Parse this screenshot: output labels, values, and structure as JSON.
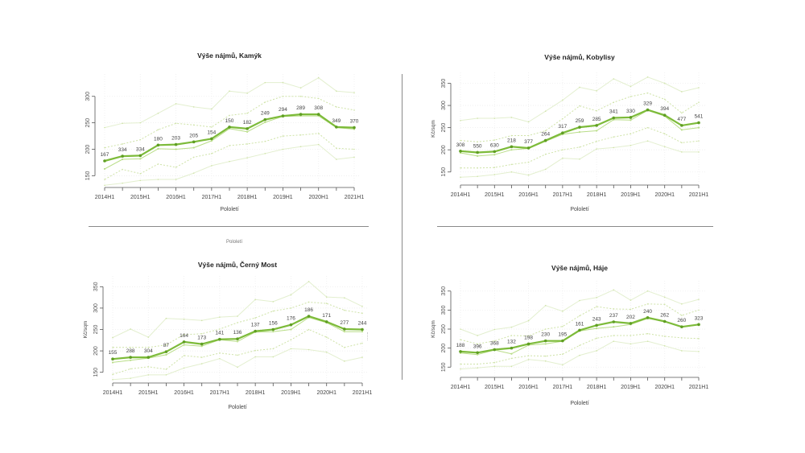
{
  "colors": {
    "median": "#7dbb3a",
    "median_dark": "#5f9e23",
    "mean": "#b9dd88",
    "inner_band": "#cfe3a8",
    "outer_band": "#e3efcf",
    "axis": "#555555",
    "text": "#333333",
    "grid": "#eeeeee"
  },
  "stray_label": "Pololetí",
  "chart_data": [
    {
      "id": "kamyk",
      "type": "line",
      "title": "Výše nájmů, Kamýk",
      "xlabel": "Pololetí",
      "ylabel": "",
      "ylim": [
        140,
        330
      ],
      "yticks": [
        150,
        200,
        250,
        300
      ],
      "x": [
        "2014H1",
        "2014H2",
        "2015H1",
        "2015H2",
        "2016H1",
        "2016H2",
        "2017H1",
        "2017H2",
        "2018H1",
        "2018H2",
        "2019H1",
        "2019H2",
        "2020H1",
        "2020H2",
        "2021H1"
      ],
      "xtick_labels": [
        "2014H1",
        "",
        "2015H1",
        "",
        "2016H1",
        "",
        "2017H1",
        "",
        "2018H1",
        "",
        "2019H1",
        "",
        "2020H1",
        "",
        "2021H1"
      ],
      "grid": true,
      "series": [
        {
          "name": "outer_upper",
          "style": "outer",
          "values": [
            241,
            249,
            250,
            268,
            286,
            280,
            276,
            310,
            306,
            326,
            326,
            316,
            335,
            310,
            307
          ]
        },
        {
          "name": "inner_upper",
          "style": "inner",
          "values": [
            203,
            210,
            218,
            237,
            249,
            246,
            242,
            264,
            268,
            289,
            300,
            300,
            296,
            280,
            274
          ]
        },
        {
          "name": "mean",
          "style": "mean",
          "values": [
            163,
            181,
            182,
            201,
            200,
            203,
            216,
            239,
            233,
            251,
            262,
            263,
            263,
            241,
            238
          ]
        },
        {
          "name": "median",
          "style": "median",
          "values": [
            178,
            187,
            188,
            208,
            209,
            214,
            220,
            242,
            239,
            256,
            263,
            266,
            266,
            242,
            241
          ],
          "labels": [
            "167",
            "334",
            "334",
            "180",
            "203",
            "205",
            "154",
            "150",
            "182",
            "249",
            "294",
            "289",
            "308",
            "349",
            "370"
          ]
        },
        {
          "name": "inner_lower",
          "style": "inner",
          "values": [
            143,
            162,
            154,
            172,
            166,
            185,
            192,
            207,
            210,
            215,
            225,
            227,
            230,
            202,
            200
          ]
        },
        {
          "name": "outer_lower",
          "style": "outer",
          "values": [
            132,
            136,
            141,
            143,
            143,
            155,
            169,
            177,
            184,
            192,
            200,
            205,
            209,
            181,
            185
          ]
        }
      ]
    },
    {
      "id": "kobylisy",
      "type": "line",
      "title": "Výše nájmů, Kobylisy",
      "xlabel": "Pololetí",
      "ylabel": "Kč/sqm",
      "ylim": [
        135,
        360
      ],
      "yticks": [
        150,
        200,
        250,
        300,
        350
      ],
      "x": [
        "2014H1",
        "2014H2",
        "2015H1",
        "2015H2",
        "2016H1",
        "2016H2",
        "2017H1",
        "2017H2",
        "2018H1",
        "2018H2",
        "2019H1",
        "2019H2",
        "2020H1",
        "2020H2",
        "2021H1"
      ],
      "xtick_labels": [
        "2014H1",
        "",
        "2015H1",
        "",
        "2016H1",
        "",
        "2017H1",
        "",
        "2018H1",
        "",
        "2019H1",
        "",
        "2020H1",
        "",
        "2021H1"
      ],
      "grid": true,
      "series": [
        {
          "name": "outer_upper",
          "style": "outer",
          "values": [
            266,
            271,
            271,
            273,
            263,
            287,
            312,
            341,
            333,
            360,
            343,
            364,
            350,
            331,
            340
          ]
        },
        {
          "name": "inner_upper",
          "style": "inner",
          "values": [
            221,
            218,
            222,
            232,
            232,
            243,
            270,
            299,
            288,
            307,
            320,
            328,
            314,
            283,
            307
          ]
        },
        {
          "name": "mean",
          "style": "mean",
          "values": [
            193,
            186,
            189,
            200,
            203,
            219,
            235,
            240,
            243,
            268,
            267,
            289,
            276,
            245,
            250
          ]
        },
        {
          "name": "median",
          "style": "median",
          "values": [
            197,
            194,
            196,
            207,
            204,
            221,
            238,
            251,
            255,
            272,
            273,
            290,
            278,
            255,
            261
          ],
          "labels": [
            "308",
            "550",
            "630",
            "218",
            "377",
            "264",
            "317",
            "259",
            "285",
            "341",
            "330",
            "329",
            "394",
            "477",
            "541"
          ]
        },
        {
          "name": "inner_lower",
          "style": "inner",
          "values": [
            159,
            159,
            160,
            167,
            172,
            190,
            200,
            206,
            219,
            229,
            236,
            250,
            236,
            216,
            220
          ]
        },
        {
          "name": "outer_lower",
          "style": "outer",
          "values": [
            138,
            140,
            144,
            150,
            143,
            156,
            181,
            179,
            202,
            205,
            210,
            220,
            207,
            195,
            195
          ]
        }
      ]
    },
    {
      "id": "cerny-most",
      "type": "line",
      "title": "Výše nájmů, Černý Most",
      "xlabel": "Pololetí",
      "ylabel": "Kč/sqm",
      "ylim": [
        140,
        360
      ],
      "yticks": [
        150,
        200,
        250,
        300,
        350
      ],
      "x": [
        "2014H1",
        "2014H2",
        "2015H1",
        "2015H2",
        "2016H1",
        "2016H2",
        "2017H1",
        "2017H2",
        "2018H1",
        "2018H2",
        "2019H1",
        "2019H2",
        "2020H1",
        "2020H2",
        "2021H1"
      ],
      "xtick_labels": [
        "2014H1",
        "",
        "2015H1",
        "",
        "2016H1",
        "",
        "2017H1",
        "",
        "2018H1",
        "",
        "2019H1",
        "",
        "2020H1",
        "",
        "2021H1"
      ],
      "grid": true,
      "series": [
        {
          "name": "outer_upper",
          "style": "outer",
          "values": [
            231,
            251,
            232,
            276,
            274,
            271,
            279,
            281,
            320,
            315,
            331,
            362,
            326,
            324,
            304
          ]
        },
        {
          "name": "inner_upper",
          "style": "inner",
          "values": [
            208,
            208,
            208,
            214,
            238,
            240,
            251,
            266,
            277,
            293,
            300,
            314,
            311,
            295,
            288
          ]
        },
        {
          "name": "mean",
          "style": "mean",
          "values": [
            173,
            178,
            183,
            191,
            214,
            211,
            226,
            222,
            244,
            245,
            250,
            278,
            266,
            245,
            245
          ]
        },
        {
          "name": "median",
          "style": "median",
          "values": [
            181,
            185,
            185,
            198,
            221,
            216,
            227,
            228,
            246,
            250,
            261,
            281,
            268,
            251,
            250
          ],
          "labels": [
            "155",
            "288",
            "304",
            "87",
            "164",
            "173",
            "141",
            "136",
            "137",
            "156",
            "176",
            "186",
            "171",
            "277",
            "244"
          ]
        },
        {
          "name": "inner_lower",
          "style": "inner",
          "values": [
            145,
            158,
            163,
            157,
            189,
            185,
            195,
            190,
            201,
            205,
            226,
            250,
            232,
            208,
            218
          ]
        },
        {
          "name": "outer_lower",
          "style": "outer",
          "values": [
            133,
            136,
            144,
            144,
            160,
            170,
            182,
            162,
            186,
            186,
            205,
            203,
            197,
            176,
            185
          ]
        }
      ]
    },
    {
      "id": "haje",
      "type": "line",
      "title": "Výše nájmů, Háje",
      "xlabel": "Pololetí",
      "ylabel": "Kč/sqm",
      "ylim": [
        140,
        360
      ],
      "yticks": [
        150,
        200,
        250,
        300,
        350
      ],
      "x": [
        "2014H1",
        "2014H2",
        "2015H1",
        "2015H2",
        "2016H1",
        "2016H2",
        "2017H1",
        "2017H2",
        "2018H1",
        "2018H2",
        "2019H1",
        "2019H2",
        "2020H1",
        "2020H2",
        "2021H1"
      ],
      "xtick_labels": [
        "2014H1",
        "",
        "2015H1",
        "",
        "2016H1",
        "",
        "2017H1",
        "",
        "2018H1",
        "",
        "2019H1",
        "",
        "2020H1",
        "",
        "2021H1"
      ],
      "grid": true,
      "series": [
        {
          "name": "outer_upper",
          "style": "outer",
          "values": [
            250,
            233,
            249,
            255,
            272,
            312,
            297,
            325,
            333,
            353,
            326,
            350,
            334,
            316,
            328
          ]
        },
        {
          "name": "inner_upper",
          "style": "inner",
          "values": [
            222,
            211,
            219,
            233,
            232,
            250,
            257,
            285,
            309,
            303,
            302,
            316,
            315,
            286,
            300
          ]
        },
        {
          "name": "mean",
          "style": "mean",
          "values": [
            187,
            183,
            195,
            185,
            208,
            211,
            218,
            245,
            252,
            256,
            262,
            278,
            270,
            256,
            261
          ]
        },
        {
          "name": "median",
          "style": "median",
          "values": [
            191,
            188,
            196,
            200,
            211,
            219,
            219,
            247,
            260,
            269,
            265,
            280,
            270,
            256,
            262
          ],
          "labels": [
            "188",
            "396",
            "368",
            "132",
            "198",
            "230",
            "195",
            "161",
            "243",
            "237",
            "202",
            "240",
            "262",
            "260",
            "323"
          ]
        },
        {
          "name": "inner_lower",
          "style": "inner",
          "values": [
            158,
            158,
            162,
            173,
            180,
            179,
            184,
            207,
            226,
            233,
            233,
            238,
            231,
            227,
            225
          ]
        },
        {
          "name": "outer_lower",
          "style": "outer",
          "values": [
            145,
            148,
            152,
            152,
            170,
            166,
            156,
            181,
            193,
            218,
            211,
            218,
            206,
            193,
            191
          ]
        }
      ]
    }
  ]
}
